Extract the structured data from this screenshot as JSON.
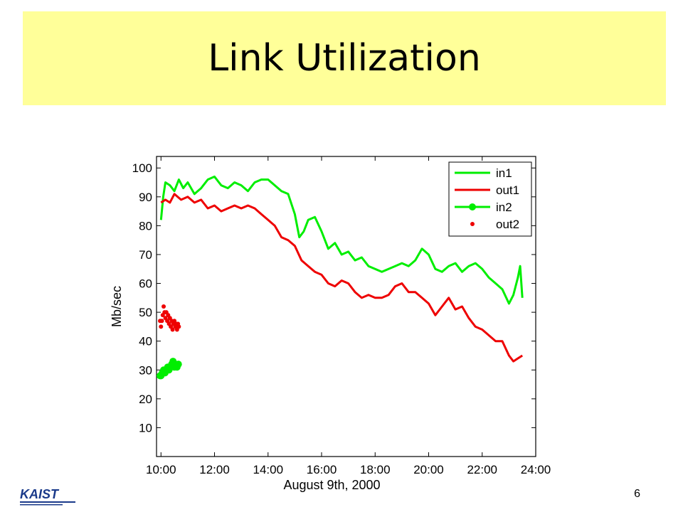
{
  "slide": {
    "title": "Link Utilization",
    "page_number": "6",
    "logo_text": "KAIST"
  },
  "colors": {
    "banner": "#ffff99",
    "in": "#00ee00",
    "out": "#ee0000"
  },
  "chart_data": {
    "type": "line",
    "title": "",
    "xlabel": "August 9th, 2000",
    "ylabel": "Mb/sec",
    "xlim": [
      "09:50",
      "24:00"
    ],
    "ylim": [
      0,
      104
    ],
    "xticks": [
      "10:00",
      "12:00",
      "14:00",
      "16:00",
      "18:00",
      "20:00",
      "22:00",
      "24:00"
    ],
    "yticks": [
      10,
      20,
      30,
      40,
      50,
      60,
      70,
      80,
      90,
      100
    ],
    "grid": false,
    "legend": "top-right",
    "series": [
      {
        "name": "in1",
        "style": "line",
        "color": "#00ee00",
        "points": [
          [
            "10:00",
            82
          ],
          [
            "10:05",
            90
          ],
          [
            "10:10",
            95
          ],
          [
            "10:20",
            94
          ],
          [
            "10:30",
            92
          ],
          [
            "10:40",
            96
          ],
          [
            "10:50",
            93
          ],
          [
            "11:00",
            95
          ],
          [
            "11:15",
            91
          ],
          [
            "11:30",
            93
          ],
          [
            "11:45",
            96
          ],
          [
            "12:00",
            97
          ],
          [
            "12:15",
            94
          ],
          [
            "12:30",
            93
          ],
          [
            "12:45",
            95
          ],
          [
            "13:00",
            94
          ],
          [
            "13:15",
            92
          ],
          [
            "13:30",
            95
          ],
          [
            "13:45",
            96
          ],
          [
            "14:00",
            96
          ],
          [
            "14:15",
            94
          ],
          [
            "14:30",
            92
          ],
          [
            "14:45",
            91
          ],
          [
            "15:00",
            84
          ],
          [
            "15:10",
            76
          ],
          [
            "15:20",
            78
          ],
          [
            "15:30",
            82
          ],
          [
            "15:45",
            83
          ],
          [
            "16:00",
            78
          ],
          [
            "16:15",
            72
          ],
          [
            "16:30",
            74
          ],
          [
            "16:45",
            70
          ],
          [
            "17:00",
            71
          ],
          [
            "17:15",
            68
          ],
          [
            "17:30",
            69
          ],
          [
            "17:45",
            66
          ],
          [
            "18:00",
            65
          ],
          [
            "18:15",
            64
          ],
          [
            "18:30",
            65
          ],
          [
            "18:45",
            66
          ],
          [
            "19:00",
            67
          ],
          [
            "19:15",
            66
          ],
          [
            "19:30",
            68
          ],
          [
            "19:45",
            72
          ],
          [
            "20:00",
            70
          ],
          [
            "20:15",
            65
          ],
          [
            "20:30",
            64
          ],
          [
            "20:45",
            66
          ],
          [
            "21:00",
            67
          ],
          [
            "21:15",
            64
          ],
          [
            "21:30",
            66
          ],
          [
            "21:45",
            67
          ],
          [
            "22:00",
            65
          ],
          [
            "22:15",
            62
          ],
          [
            "22:30",
            60
          ],
          [
            "22:45",
            58
          ],
          [
            "23:00",
            53
          ],
          [
            "23:10",
            56
          ],
          [
            "23:20",
            62
          ],
          [
            "23:25",
            66
          ],
          [
            "23:30",
            55
          ]
        ]
      },
      {
        "name": "out1",
        "style": "line",
        "color": "#ee0000",
        "points": [
          [
            "10:00",
            88
          ],
          [
            "10:10",
            89
          ],
          [
            "10:20",
            88
          ],
          [
            "10:30",
            91
          ],
          [
            "10:45",
            89
          ],
          [
            "11:00",
            90
          ],
          [
            "11:15",
            88
          ],
          [
            "11:30",
            89
          ],
          [
            "11:45",
            86
          ],
          [
            "12:00",
            87
          ],
          [
            "12:15",
            85
          ],
          [
            "12:30",
            86
          ],
          [
            "12:45",
            87
          ],
          [
            "13:00",
            86
          ],
          [
            "13:15",
            87
          ],
          [
            "13:30",
            86
          ],
          [
            "13:45",
            84
          ],
          [
            "14:00",
            82
          ],
          [
            "14:15",
            80
          ],
          [
            "14:30",
            76
          ],
          [
            "14:45",
            75
          ],
          [
            "15:00",
            73
          ],
          [
            "15:15",
            68
          ],
          [
            "15:30",
            66
          ],
          [
            "15:45",
            64
          ],
          [
            "16:00",
            63
          ],
          [
            "16:15",
            60
          ],
          [
            "16:30",
            59
          ],
          [
            "16:45",
            61
          ],
          [
            "17:00",
            60
          ],
          [
            "17:15",
            57
          ],
          [
            "17:30",
            55
          ],
          [
            "17:45",
            56
          ],
          [
            "18:00",
            55
          ],
          [
            "18:15",
            55
          ],
          [
            "18:30",
            56
          ],
          [
            "18:45",
            59
          ],
          [
            "19:00",
            60
          ],
          [
            "19:15",
            57
          ],
          [
            "19:30",
            57
          ],
          [
            "19:45",
            55
          ],
          [
            "20:00",
            53
          ],
          [
            "20:15",
            49
          ],
          [
            "20:30",
            52
          ],
          [
            "20:45",
            55
          ],
          [
            "21:00",
            51
          ],
          [
            "21:15",
            52
          ],
          [
            "21:30",
            48
          ],
          [
            "21:45",
            45
          ],
          [
            "22:00",
            44
          ],
          [
            "22:15",
            42
          ],
          [
            "22:30",
            40
          ],
          [
            "22:45",
            40
          ],
          [
            "23:00",
            35
          ],
          [
            "23:10",
            33
          ],
          [
            "23:20",
            34
          ],
          [
            "23:30",
            35
          ]
        ]
      },
      {
        "name": "in2",
        "style": "line-marker",
        "color": "#00ee00",
        "points": [
          [
            "09:58",
            28
          ],
          [
            "10:00",
            28
          ],
          [
            "10:03",
            29
          ],
          [
            "10:06",
            30
          ],
          [
            "10:09",
            29
          ],
          [
            "10:12",
            30
          ],
          [
            "10:15",
            31
          ],
          [
            "10:18",
            30
          ],
          [
            "10:21",
            31
          ],
          [
            "10:24",
            32
          ],
          [
            "10:27",
            33
          ],
          [
            "10:30",
            31
          ],
          [
            "10:33",
            32
          ],
          [
            "10:36",
            31
          ],
          [
            "10:39",
            32
          ]
        ]
      },
      {
        "name": "out2",
        "style": "scatter",
        "color": "#ee0000",
        "points": [
          [
            "09:58",
            47
          ],
          [
            "10:00",
            45
          ],
          [
            "10:02",
            47
          ],
          [
            "10:04",
            49
          ],
          [
            "10:06",
            52
          ],
          [
            "10:08",
            50
          ],
          [
            "10:10",
            48
          ],
          [
            "10:12",
            50
          ],
          [
            "10:14",
            47
          ],
          [
            "10:16",
            49
          ],
          [
            "10:18",
            46
          ],
          [
            "10:20",
            48
          ],
          [
            "10:22",
            45
          ],
          [
            "10:24",
            47
          ],
          [
            "10:26",
            44
          ],
          [
            "10:28",
            46
          ],
          [
            "10:30",
            47
          ],
          [
            "10:32",
            45
          ],
          [
            "10:34",
            46
          ],
          [
            "10:36",
            44
          ],
          [
            "10:38",
            46
          ],
          [
            "10:40",
            45
          ]
        ]
      }
    ]
  }
}
